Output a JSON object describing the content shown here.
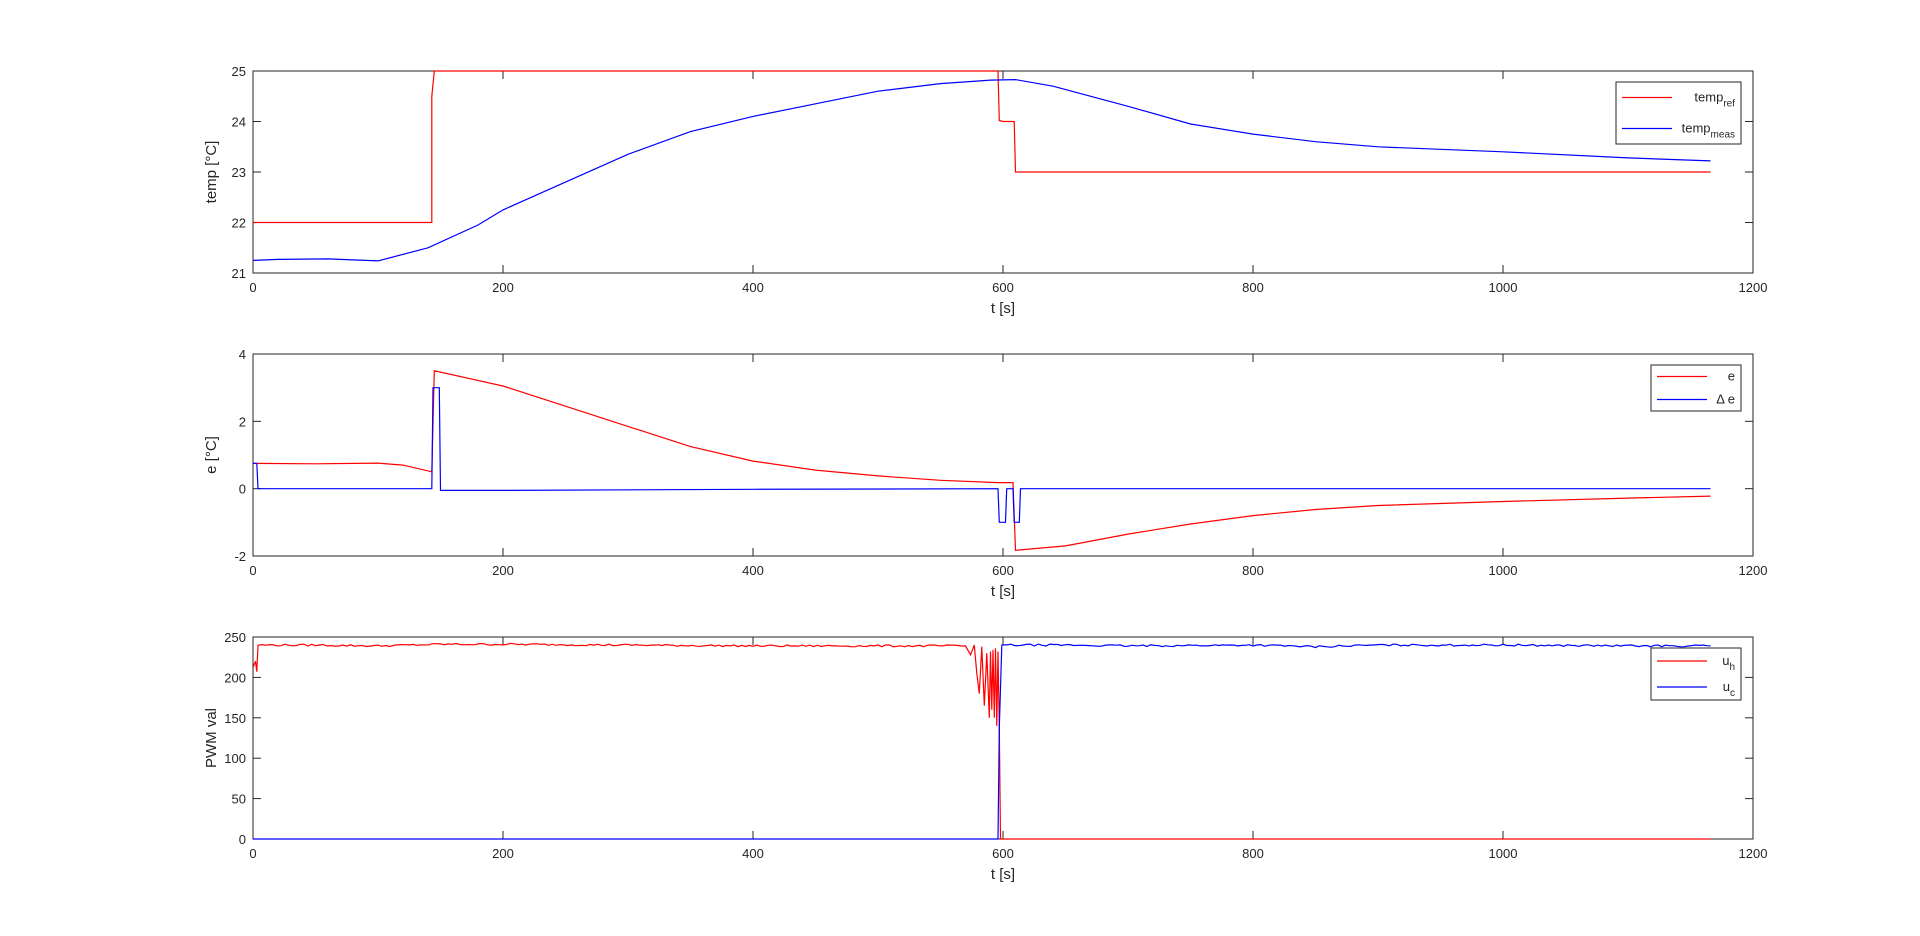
{
  "chart_data": [
    {
      "type": "line",
      "xlabel": "t [s]",
      "ylabel": "temp [°C]",
      "xlim": [
        0,
        1200
      ],
      "ylim": [
        21,
        25
      ],
      "xticks": [
        "0",
        "200",
        "400",
        "600",
        "800",
        "1000",
        "1200"
      ],
      "yticks": [
        "21",
        "22",
        "23",
        "24",
        "25"
      ],
      "grid": false,
      "legend_position": "top-right",
      "series": [
        {
          "name": "temp",
          "subscript": "ref",
          "color": "#ff0000",
          "x": [
            0,
            143,
            143,
            145,
            596,
            597,
            600,
            609,
            610,
            1166
          ],
          "y": [
            22,
            22,
            24.5,
            25,
            25,
            24.02,
            24,
            24,
            23,
            23
          ]
        },
        {
          "name": "temp",
          "subscript": "meas",
          "color": "#0000ff",
          "x": [
            0,
            20,
            60,
            100,
            140,
            180,
            200,
            250,
            300,
            350,
            400,
            450,
            500,
            550,
            590,
            610,
            640,
            700,
            750,
            800,
            850,
            900,
            1000,
            1100,
            1166
          ],
          "y": [
            21.25,
            21.27,
            21.28,
            21.24,
            21.5,
            21.95,
            22.25,
            22.8,
            23.35,
            23.8,
            24.1,
            24.35,
            24.6,
            24.75,
            24.82,
            24.83,
            24.7,
            24.3,
            23.95,
            23.75,
            23.6,
            23.5,
            23.4,
            23.28,
            23.22
          ]
        }
      ]
    },
    {
      "type": "line",
      "xlabel": "t [s]",
      "ylabel": "e [°C]",
      "xlim": [
        0,
        1200
      ],
      "ylim": [
        -2,
        4
      ],
      "xticks": [
        "0",
        "200",
        "400",
        "600",
        "800",
        "1000",
        "1200"
      ],
      "yticks": [
        "-2",
        "0",
        "2",
        "4"
      ],
      "grid": false,
      "legend_position": "top-right",
      "series": [
        {
          "name": "e",
          "subscript": "",
          "color": "#ff0000",
          "x": [
            0,
            50,
            100,
            120,
            143,
            145,
            200,
            250,
            300,
            350,
            400,
            450,
            500,
            550,
            596,
            597,
            608,
            610,
            650,
            700,
            750,
            800,
            850,
            900,
            1000,
            1100,
            1166
          ],
          "y": [
            0.75,
            0.74,
            0.76,
            0.7,
            0.5,
            3.5,
            3.05,
            2.45,
            1.85,
            1.25,
            0.82,
            0.55,
            0.38,
            0.25,
            0.18,
            0.18,
            0.18,
            -1.83,
            -1.7,
            -1.35,
            -1.05,
            -0.8,
            -0.62,
            -0.5,
            -0.38,
            -0.28,
            -0.22
          ]
        },
        {
          "name": "Δ e",
          "subscript": "",
          "color": "#0000ff",
          "x": [
            0,
            3,
            4,
            50,
            100,
            143,
            144,
            149,
            150,
            200,
            400,
            596,
            597,
            602,
            603,
            608,
            609,
            613,
            614,
            1166
          ],
          "y": [
            0.75,
            0.75,
            0.0,
            0.0,
            0.0,
            0.0,
            3.0,
            3.0,
            -0.05,
            -0.05,
            -0.02,
            0.0,
            -1.0,
            -1.0,
            0.0,
            0.0,
            -1.0,
            -1.0,
            0.0,
            0.0
          ]
        }
      ]
    },
    {
      "type": "line",
      "xlabel": "t [s]",
      "ylabel": "PWM val",
      "xlim": [
        0,
        1200
      ],
      "ylim": [
        0,
        250
      ],
      "xticks": [
        "0",
        "200",
        "400",
        "600",
        "800",
        "1000",
        "1200"
      ],
      "yticks": [
        "0",
        "50",
        "100",
        "150",
        "200",
        "250"
      ],
      "grid": false,
      "legend_position": "top-right",
      "series": [
        {
          "name": "u",
          "subscript": "h",
          "color": "#ff0000",
          "x": [
            0,
            2,
            3,
            4,
            50,
            100,
            150,
            200,
            300,
            400,
            500,
            570,
            574,
            577,
            579,
            581,
            583,
            585,
            587,
            589,
            590,
            591,
            592,
            593,
            594,
            595,
            596,
            597,
            598,
            600,
            700,
            800,
            1000,
            1166
          ],
          "y": [
            212,
            220,
            207,
            240,
            240,
            239,
            241,
            241,
            240,
            239,
            239,
            239,
            228,
            240,
            205,
            180,
            238,
            165,
            230,
            150,
            232,
            160,
            234,
            150,
            236,
            140,
            232,
            138,
            0,
            0,
            0,
            0,
            0,
            0
          ],
          "noise": 1.2
        },
        {
          "name": "u",
          "subscript": "c",
          "color": "#0000ff",
          "x": [
            0,
            200,
            400,
            596,
            597,
            599,
            600,
            650,
            700,
            800,
            850,
            900,
            1000,
            1100,
            1166
          ],
          "y": [
            0,
            0,
            0,
            0,
            138,
            240,
            240,
            240,
            239,
            240,
            238,
            240,
            240,
            239,
            239
          ],
          "noise": 1.2
        }
      ]
    }
  ]
}
